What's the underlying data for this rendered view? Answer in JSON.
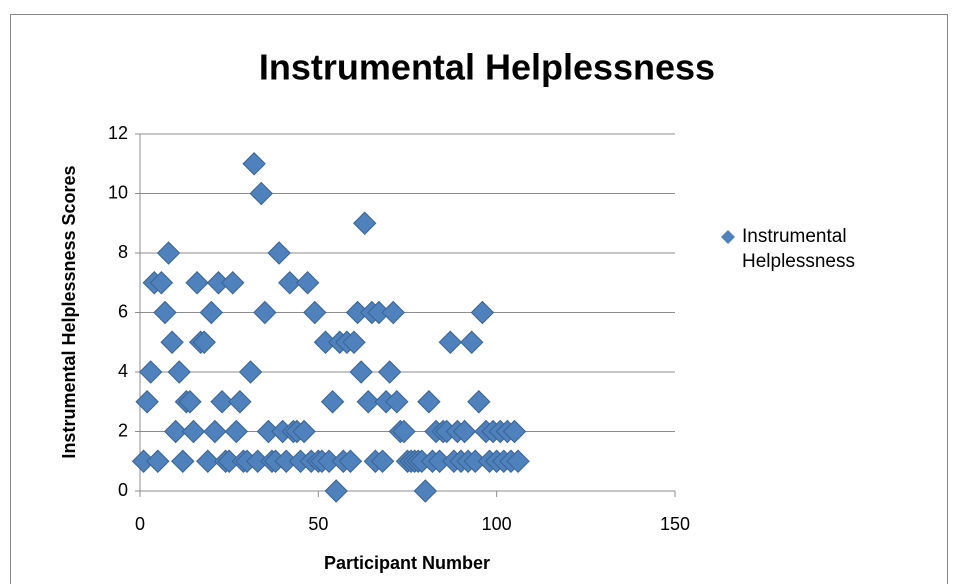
{
  "chart_data": {
    "type": "scatter",
    "title": "Instrumental Helplessness",
    "xlabel": "Participant Number",
    "ylabel": "Instrumental Helplessness Scores",
    "xlim": [
      0,
      150
    ],
    "xticks": [
      0,
      50,
      100,
      150
    ],
    "ylim": [
      0,
      12
    ],
    "yticks": [
      0,
      2,
      4,
      6,
      8,
      10,
      12
    ],
    "grid": true,
    "legend": "right",
    "series": [
      {
        "name": "Instrumental Helplessness",
        "color": "#4f81bd",
        "x": [
          1,
          2,
          3,
          4,
          5,
          6,
          7,
          8,
          9,
          10,
          11,
          12,
          13,
          14,
          15,
          16,
          17,
          18,
          19,
          20,
          21,
          22,
          23,
          24,
          25,
          26,
          27,
          28,
          29,
          30,
          31,
          32,
          33,
          34,
          35,
          36,
          37,
          38,
          39,
          40,
          41,
          42,
          43,
          44,
          45,
          46,
          47,
          48,
          49,
          50,
          51,
          52,
          53,
          54,
          55,
          56,
          57,
          58,
          59,
          60,
          61,
          62,
          63,
          64,
          65,
          66,
          67,
          68,
          69,
          70,
          71,
          72,
          73,
          74,
          75,
          76,
          77,
          78,
          79,
          80,
          81,
          82,
          83,
          84,
          85,
          86,
          87,
          88,
          89,
          90,
          91,
          92,
          93,
          94,
          95,
          96,
          97,
          98,
          99,
          100,
          101,
          102,
          103,
          104,
          105,
          106
        ],
        "values": [
          1,
          3,
          4,
          7,
          1,
          7,
          6,
          8,
          5,
          2,
          4,
          1,
          3,
          3,
          2,
          7,
          5,
          5,
          1,
          6,
          2,
          7,
          3,
          1,
          1,
          7,
          2,
          3,
          1,
          1,
          4,
          11,
          1,
          10,
          6,
          2,
          1,
          1,
          8,
          2,
          1,
          7,
          2,
          2,
          1,
          2,
          7,
          1,
          6,
          1,
          1,
          5,
          1,
          3,
          0,
          5,
          1,
          5,
          1,
          5,
          6,
          4,
          9,
          3,
          6,
          1,
          6,
          1,
          3,
          4,
          6,
          3,
          2,
          2,
          1,
          1,
          1,
          1,
          1,
          0,
          3,
          1,
          2,
          1,
          2,
          2,
          5,
          1,
          2,
          1,
          2,
          1,
          5,
          1,
          3,
          6,
          2,
          1,
          2,
          1,
          2,
          1,
          2,
          1,
          2,
          1
        ]
      }
    ]
  }
}
